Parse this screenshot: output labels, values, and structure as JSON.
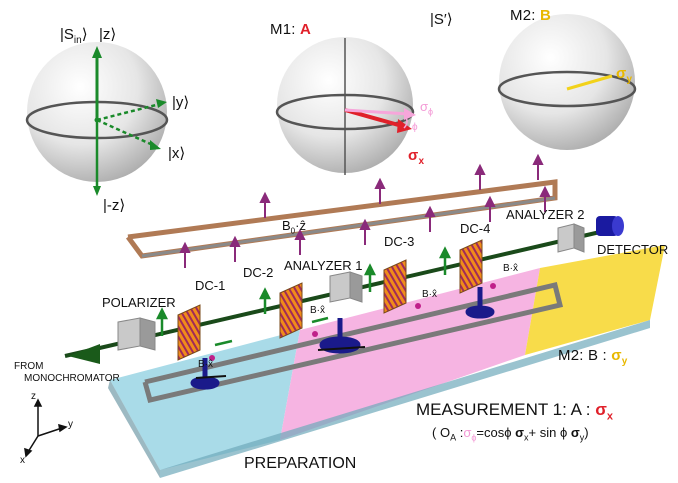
{
  "spheres": {
    "left": {
      "sin": "|S",
      "sin_sub": "in",
      "sin_close": "⟩",
      "z": "|z⟩",
      "y": "|y⟩",
      "x": "|x⟩",
      "mz": "|-z⟩"
    },
    "middle": {
      "title": "M1:",
      "title_letter": "A",
      "sphi": "σ",
      "sphi_sub": "ϕ",
      "phi": "ϕ",
      "sx": "σ",
      "sx_sub": "x"
    },
    "sprime": "|S′⟩",
    "right": {
      "title": "M2:",
      "title_letter": "B",
      "sy": "σ",
      "sy_sub": "y"
    }
  },
  "field_label": "B",
  "field_sub": "0",
  "field_tail": "·ẑ",
  "components": {
    "dc1": "DC-1",
    "dc2": "DC-2",
    "dc3": "DC-3",
    "dc4": "DC-4",
    "analyzer1": "ANALYZER 1",
    "analyzer2": "ANALYZER 2",
    "polarizer": "POLARIZER",
    "detector": "DETECTOR",
    "from": "FROM",
    "monochromator": "MONOCHROMATOR",
    "bx": "B·x̂"
  },
  "stages": {
    "m2": "M2: B :",
    "m2_sigma": "σ",
    "m2_sub": "y",
    "m1": "MEASUREMENT 1: A :",
    "m1_sigma": "σ",
    "m1_sub": "x",
    "formula_open": "( O",
    "formula_sub": "A",
    "formula_colon": " :",
    "formula_sphi": "σ",
    "formula_sphi_sub": "ϕ",
    "formula_eq": "=cosϕ",
    "formula_sx": "σ",
    "formula_sx_sub": "x",
    "formula_plus": "+ sin ϕ",
    "formula_sy": "σ",
    "formula_sy_sub": "y",
    "formula_close": ")",
    "preparation": "PREPARATION"
  },
  "axes": {
    "z": "z",
    "y": "y",
    "x": "x"
  },
  "colors": {
    "green": "#1a8a2a",
    "red": "#e0202a",
    "yellow": "#f2d21a",
    "pink": "#f6a6da",
    "cyan": "#a9dbe8",
    "purple": "#8a2a7a",
    "orange": "#f08c1a",
    "navy": "#1a1a8a"
  }
}
